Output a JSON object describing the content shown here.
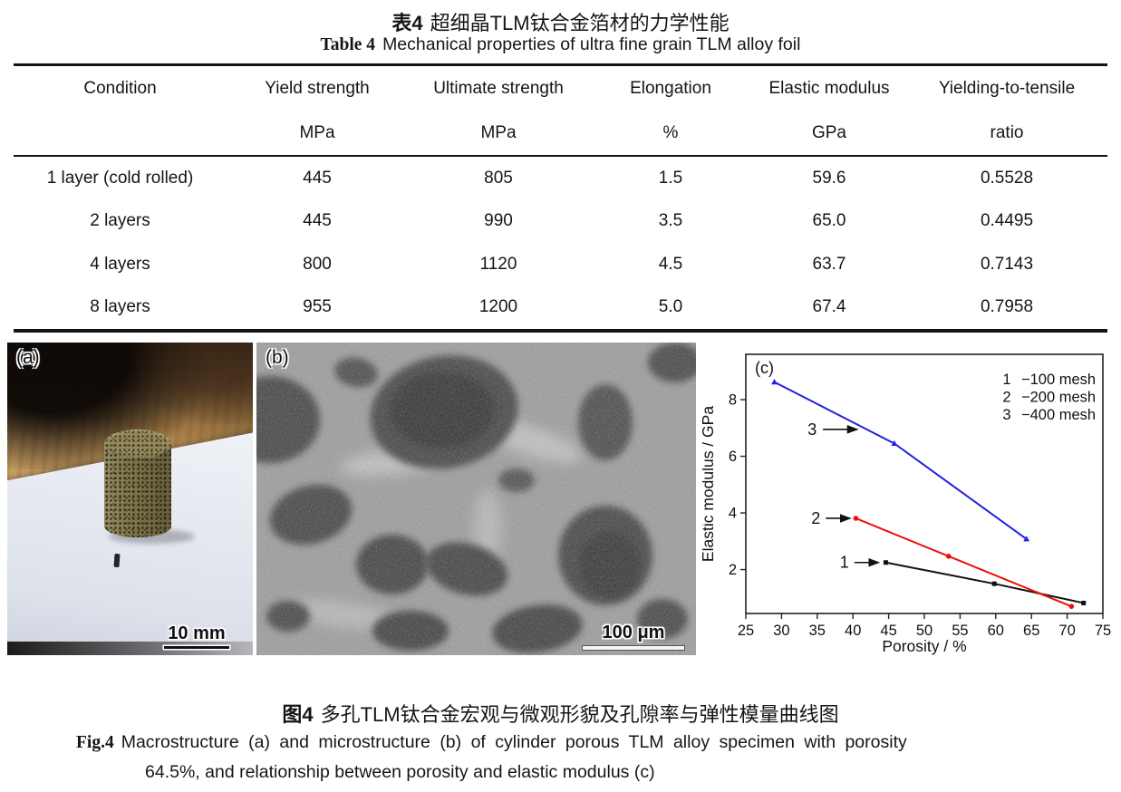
{
  "table_caption": {
    "zh_prefix": "表4",
    "zh_text": "超细晶TLM钛合金箔材的力学性能",
    "en_prefix": "Table 4",
    "en_text": "Mechanical properties of ultra fine grain TLM alloy foil"
  },
  "table": {
    "headers": [
      {
        "line1": "Condition",
        "line2": ""
      },
      {
        "line1": "Yield strength",
        "line2": "MPa"
      },
      {
        "line1": "Ultimate strength",
        "line2": "MPa"
      },
      {
        "line1": "Elongation",
        "line2": "%"
      },
      {
        "line1": "Elastic modulus",
        "line2": "GPa"
      },
      {
        "line1": "Yielding-to-tensile",
        "line2": "ratio"
      }
    ],
    "rows": [
      [
        "1 layer (cold rolled)",
        "445",
        "805",
        "1.5",
        "59.6",
        "0.5528"
      ],
      [
        "2 layers",
        "445",
        "990",
        "3.5",
        "65.0",
        "0.4495"
      ],
      [
        "4 layers",
        "800",
        "1120",
        "4.5",
        "63.7",
        "0.7143"
      ],
      [
        "8 layers",
        "955",
        "1200",
        "5.0",
        "67.4",
        "0.7958"
      ]
    ]
  },
  "figure": {
    "panel_a": {
      "label": "(a)",
      "scalebar": "10 mm"
    },
    "panel_b": {
      "label": "(b)",
      "scalebar": "100 μm"
    }
  },
  "chart_data": {
    "type": "line",
    "panel_label": "(c)",
    "xlabel": "Porosity / %",
    "ylabel": "Elastic modulus / GPa",
    "xlim": [
      25,
      75
    ],
    "ylim": [
      0.45,
      9.6
    ],
    "xticks": [
      25,
      30,
      35,
      40,
      45,
      50,
      55,
      60,
      65,
      70,
      75
    ],
    "yticks": [
      2,
      4,
      6,
      8
    ],
    "grid": false,
    "legend_position": "top-right",
    "series": [
      {
        "id": "1",
        "name": "−100 mesh",
        "color": "#111111",
        "marker": "square",
        "points": [
          [
            44.6,
            2.25
          ],
          [
            59.8,
            1.5
          ],
          [
            72.3,
            0.82
          ]
        ]
      },
      {
        "id": "2",
        "name": "−200 mesh",
        "color": "#ee0f0a",
        "marker": "circle",
        "points": [
          [
            40.4,
            3.81
          ],
          [
            53.4,
            2.47
          ],
          [
            70.6,
            0.7
          ]
        ]
      },
      {
        "id": "3",
        "name": "−400 mesh",
        "color": "#2222e0",
        "marker": "triangle",
        "points": [
          [
            29.0,
            8.62
          ],
          [
            45.8,
            6.45
          ],
          [
            64.3,
            3.08
          ]
        ]
      }
    ],
    "annotations": [
      {
        "label": "3",
        "text_x": 34.3,
        "text_y": 6.95,
        "arrow_x1": 35.8,
        "arrow_x2": 40.6,
        "arrow_y": 6.95
      },
      {
        "label": "2",
        "text_x": 34.8,
        "text_y": 3.81,
        "arrow_x1": 36.2,
        "arrow_x2": 39.6,
        "arrow_y": 3.81
      },
      {
        "label": "1",
        "text_x": 38.8,
        "text_y": 2.25,
        "arrow_x1": 40.2,
        "arrow_x2": 43.6,
        "arrow_y": 2.25
      }
    ]
  },
  "figure_caption": {
    "zh_prefix": "图4",
    "zh_text": "多孔TLM钛合金宏观与微观形貌及孔隙率与弹性模量曲线图",
    "en_prefix": "Fig.4",
    "en_line1": "Macrostructure (a) and microstructure (b) of cylinder porous TLM alloy specimen with porosity",
    "en_line2": "64.5%, and relationship between porosity and elastic modulus (c)"
  }
}
